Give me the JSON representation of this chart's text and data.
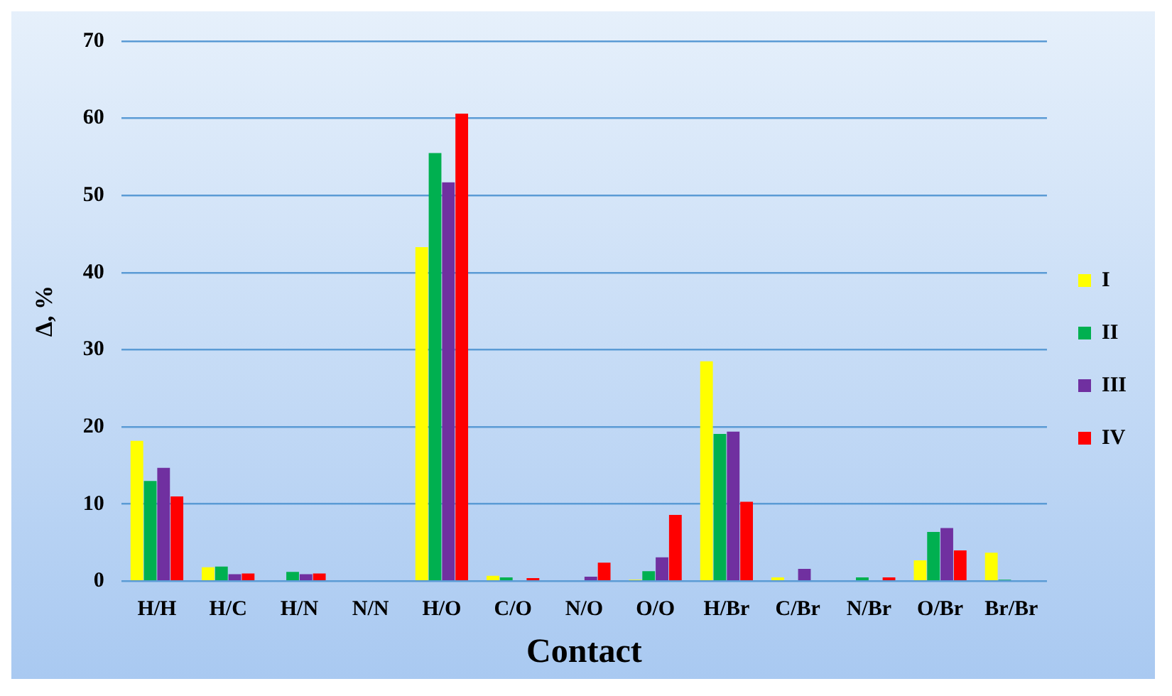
{
  "chart_data": {
    "type": "bar",
    "xlabel": "Contact",
    "ylabel": "Δ, %",
    "categories": [
      "H/H",
      "H/C",
      "H/N",
      "N/N",
      "H/O",
      "C/O",
      "N/O",
      "O/O",
      "H/Br",
      "C/Br",
      "N/Br",
      "O/Br",
      "Br/Br"
    ],
    "series": [
      {
        "name": "I",
        "color": "#ffff00",
        "values": [
          18.2,
          1.8,
          0,
          0,
          43.3,
          0.7,
          0,
          0.2,
          28.5,
          0.5,
          0,
          2.7,
          3.7
        ]
      },
      {
        "name": "II",
        "color": "#00b050",
        "values": [
          13,
          1.9,
          1.2,
          0,
          55.5,
          0.5,
          0,
          1.3,
          19.1,
          0,
          0.5,
          6.4,
          0.2
        ]
      },
      {
        "name": "III",
        "color": "#7030a0",
        "values": [
          14.7,
          0.9,
          0.9,
          0,
          51.7,
          0,
          0.6,
          3.1,
          19.4,
          1.6,
          0,
          6.9,
          0
        ]
      },
      {
        "name": "IV",
        "color": "#ff0000",
        "values": [
          11,
          1.0,
          1.0,
          0,
          60.6,
          0.4,
          2.4,
          8.6,
          10.3,
          0,
          0.5,
          4.0,
          0
        ]
      }
    ],
    "ylim": [
      0,
      70
    ],
    "yticks": [
      0,
      10,
      20,
      30,
      40,
      50,
      60,
      70
    ],
    "grid": "y",
    "legend": "right"
  }
}
